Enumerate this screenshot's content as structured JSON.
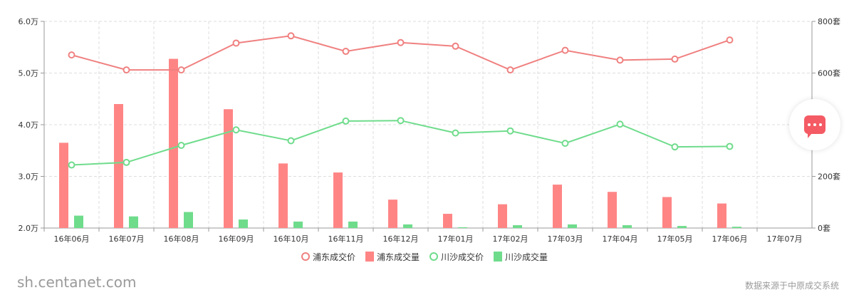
{
  "chart_data": {
    "type": "bar+line",
    "categories": [
      "16年06月",
      "16年07月",
      "16年08月",
      "16年09月",
      "16年10月",
      "16年11月",
      "16年12月",
      "17年01月",
      "17年02月",
      "17年03月",
      "17年04月",
      "17年05月",
      "17年06月",
      "17年07月"
    ],
    "y_left": {
      "ticks": [
        "2.0万",
        "3.0万",
        "4.0万",
        "5.0万",
        "6.0万"
      ],
      "range": [
        2.0,
        6.0
      ]
    },
    "y_right": {
      "ticks": [
        "0套",
        "200套",
        "400套",
        "600套",
        "800套"
      ],
      "range": [
        0,
        800
      ]
    },
    "grid": true,
    "legend_position": "bottom",
    "series": [
      {
        "name": "浦东成交价",
        "kind": "line",
        "axis": "left",
        "color": "#f08080",
        "values": [
          5.35,
          5.06,
          5.06,
          5.58,
          5.72,
          5.42,
          5.59,
          5.52,
          5.06,
          5.44,
          5.25,
          5.27,
          5.64,
          null
        ]
      },
      {
        "name": "浦东成交量",
        "kind": "bar",
        "axis": "right",
        "color": "#ff8585",
        "values": [
          330,
          480,
          655,
          460,
          250,
          215,
          110,
          55,
          92,
          168,
          140,
          120,
          95,
          null
        ]
      },
      {
        "name": "川沙成交价",
        "kind": "line",
        "axis": "left",
        "color": "#6fdc8c",
        "values": [
          3.22,
          3.27,
          3.6,
          3.9,
          3.69,
          4.07,
          4.08,
          3.84,
          3.88,
          3.64,
          4.01,
          3.57,
          3.58,
          null
        ]
      },
      {
        "name": "川沙成交量",
        "kind": "bar",
        "axis": "right",
        "color": "#6fdc8c",
        "values": [
          48,
          45,
          62,
          33,
          25,
          25,
          14,
          3,
          11,
          14,
          11,
          8,
          5,
          null
        ]
      }
    ]
  },
  "legend": {
    "pd_price": "浦东成交价",
    "pd_volume": "浦东成交量",
    "cs_price": "川沙成交价",
    "cs_volume": "川沙成交量"
  },
  "colors": {
    "pd_line": "#f08080",
    "pd_bar": "#ff8585",
    "cs": "#6fdc8c"
  },
  "footer": {
    "site": "sh.centanet.com",
    "source": "数据来源于中原成交系统"
  },
  "icons": {
    "chat": "chat-bubble-icon"
  }
}
